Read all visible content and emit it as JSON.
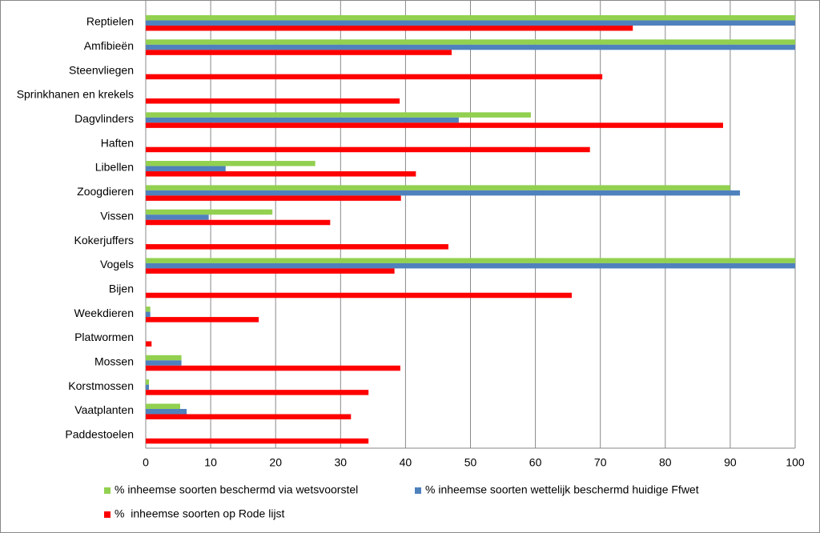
{
  "chart_data": {
    "type": "hbar",
    "categories": [
      "Reptielen",
      "Amfibieën",
      "Steenvliegen",
      "Sprinkhanen en krekels",
      "Dagvlinders",
      "Haften",
      "Libellen",
      "Zoogdieren",
      "Vissen",
      "Kokerjuffers",
      "Vogels",
      "Bijen",
      "Weekdieren",
      "Platwormen",
      "Mossen",
      "Korstmossen",
      "Vaatplanten",
      "Paddestoelen"
    ],
    "series": [
      {
        "name": "% inheemse soorten beschermd via wetsvoorstel",
        "color": "#92d050",
        "values": [
          100,
          100,
          null,
          null,
          59.3,
          null,
          26.1,
          90,
          19.5,
          null,
          100,
          null,
          0.7,
          null,
          5.5,
          0.5,
          5.3,
          null
        ]
      },
      {
        "name": "% inheemse soorten wettelijk beschermd huidige Ffwet",
        "color": "#4f81bd",
        "values": [
          100,
          100,
          null,
          null,
          48.2,
          null,
          12.3,
          91.5,
          9.7,
          null,
          100,
          null,
          0.7,
          null,
          5.5,
          0.5,
          6.3,
          null
        ]
      },
      {
        "name": "%  inheemse soorten op Rode lijst",
        "color": "#ff0000",
        "values": [
          75,
          47.1,
          70.3,
          39.1,
          88.9,
          68.4,
          41.6,
          39.3,
          28.4,
          46.6,
          38.3,
          65.6,
          17.4,
          0.9,
          39.2,
          34.3,
          31.6,
          34.3
        ]
      }
    ],
    "xlim": [
      0,
      100
    ],
    "xticks": [
      0,
      10,
      20,
      30,
      40,
      50,
      60,
      70,
      80,
      90,
      100
    ],
    "grid": true
  }
}
